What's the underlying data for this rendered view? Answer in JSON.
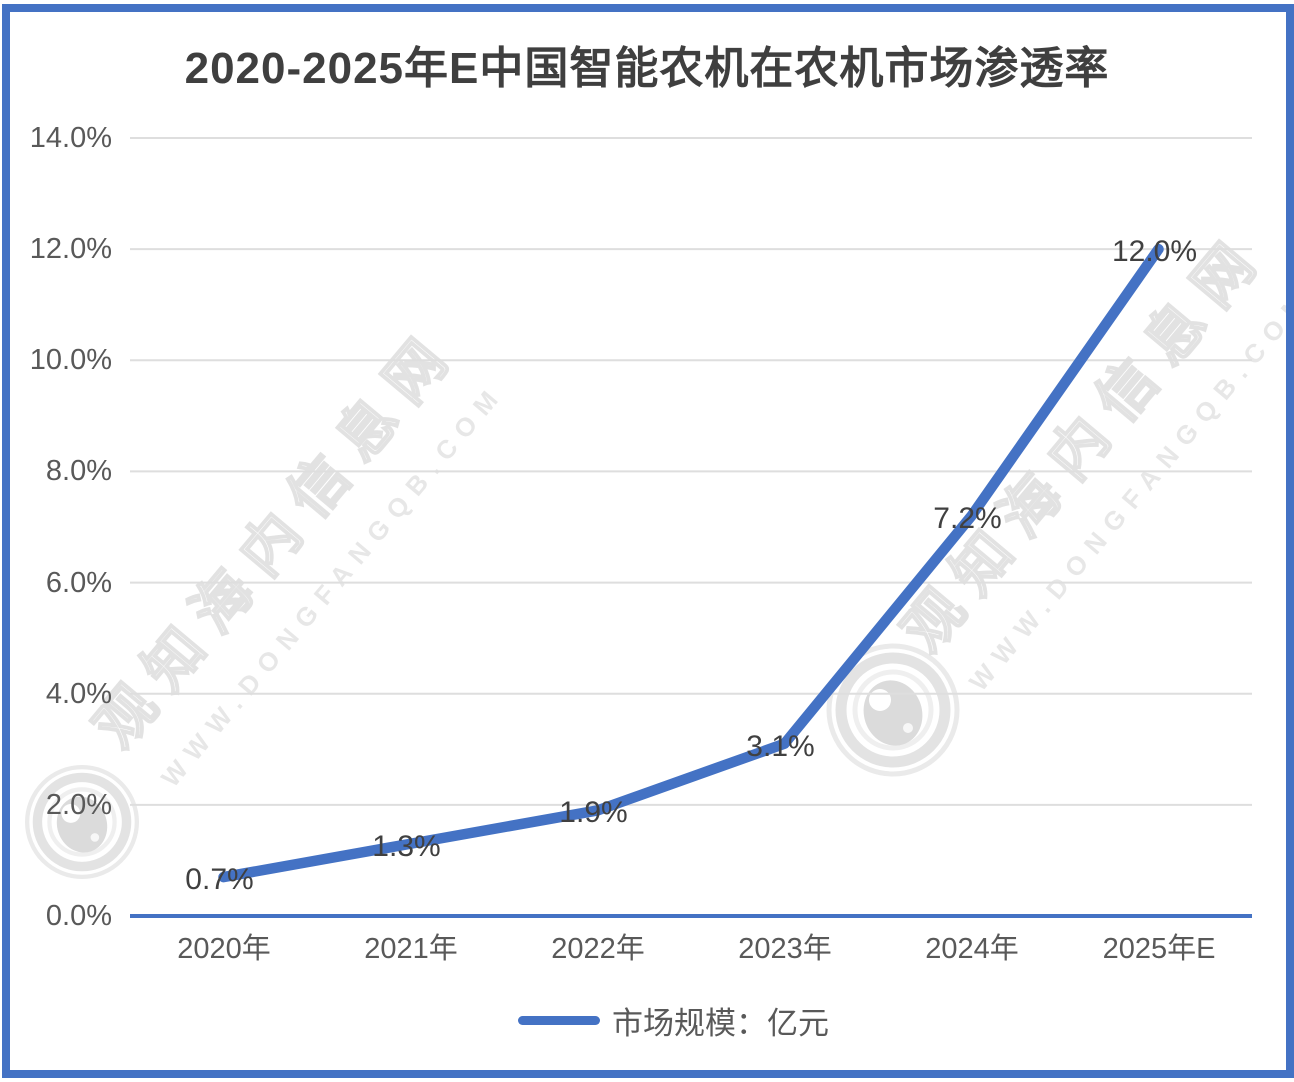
{
  "title": "2020-2025年E中国智能农机在农机市场渗透率",
  "legend": {
    "label": "市场规模：亿元"
  },
  "watermark": {
    "site_name": "观知海内信息网",
    "site_url": "WWW.DONGFANGQB.COM"
  },
  "colors": {
    "accent_blue": "#4472C4",
    "gridline": "#DEDEDE",
    "axis_line": "#4472C4",
    "title_text": "#3F3F3F",
    "axis_text": "#595959",
    "data_label_text": "#404040",
    "watermark_gray": "#E2E2E2",
    "background": "#FFFFFF"
  },
  "chart_data": {
    "type": "line",
    "title": "2020-2025年E中国智能农机在农机市场渗透率",
    "categories": [
      "2020年",
      "2021年",
      "2022年",
      "2023年",
      "2024年",
      "2025年E"
    ],
    "series": [
      {
        "name": "市场规模：亿元",
        "values": [
          0.7,
          1.3,
          1.9,
          3.1,
          7.2,
          12.0
        ]
      }
    ],
    "data_labels": [
      "0.7%",
      "1.3%",
      "1.9%",
      "3.1%",
      "7.2%",
      "12.0%"
    ],
    "xlabel": "",
    "ylabel": "",
    "ylim": [
      0,
      14
    ],
    "ytick_step": 2,
    "ytick_labels": [
      "0.0%",
      "2.0%",
      "4.0%",
      "6.0%",
      "8.0%",
      "10.0%",
      "12.0%",
      "14.0%"
    ],
    "grid": true,
    "legend_position": "bottom",
    "data_label_position": "center"
  }
}
